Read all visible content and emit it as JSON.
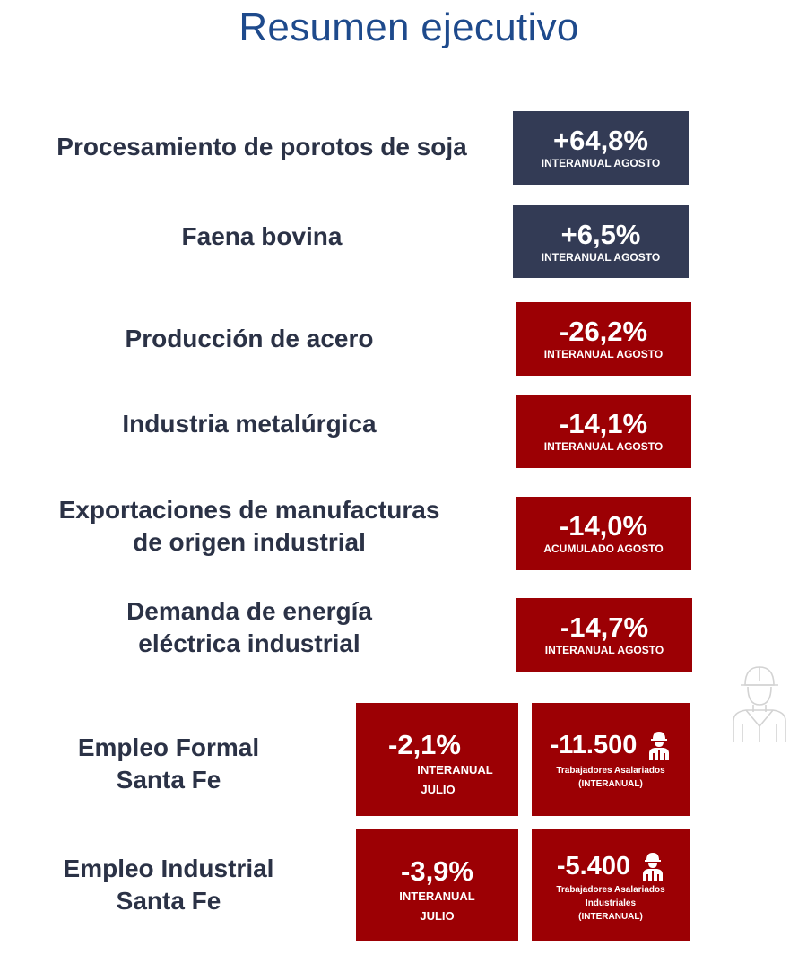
{
  "title": "Resumen ejecutivo",
  "rows": [
    {
      "label": "Procesamiento de porotos de soja",
      "value": "+64,8%",
      "sub": "INTERANUAL AGOSTO",
      "color": "#333b55"
    },
    {
      "label": "Faena bovina",
      "value": "+6,5%",
      "sub": "INTERANUAL AGOSTO",
      "color": "#333b55"
    },
    {
      "label": "Producción de acero",
      "value": "-26,2%",
      "sub": "INTERANUAL AGOSTO",
      "color": "#9c0004"
    },
    {
      "label": "Industria metalúrgica",
      "value": "-14,1%",
      "sub": "INTERANUAL AGOSTO",
      "color": "#9c0004"
    },
    {
      "label_line1": "Exportaciones de manufacturas",
      "label_line2": "de origen industrial",
      "value": "-14,0%",
      "sub": "ACUMULADO AGOSTO",
      "color": "#9c0004"
    },
    {
      "label_line1": "Demanda de energía",
      "label_line2": "eléctrica industrial",
      "value": "-14,7%",
      "sub": "INTERANUAL AGOSTO",
      "color": "#9c0004"
    }
  ],
  "employment": [
    {
      "label_line1": "Empleo Formal",
      "label_line2": "Santa Fe",
      "pct_value": "-2,1%",
      "pct_sub_line1": "INTERANUAL",
      "pct_sub_line2": "JULIO",
      "count_value": "-11.500",
      "count_sub_line1": "Trabajadores Asalariados",
      "count_sub_line2": "(INTERANUAL)"
    },
    {
      "label_line1": "Empleo Industrial",
      "label_line2": "Santa Fe",
      "pct_value": "-3,9%",
      "pct_sub_line1": "INTERANUAL",
      "pct_sub_line2": "JULIO",
      "count_value": "-5.400",
      "count_sub_line1": "Trabajadores Asalariados",
      "count_sub_line2": "Industriales",
      "count_sub_line3": "(INTERANUAL)"
    }
  ],
  "icons": {
    "worker": "construction-worker-icon"
  },
  "colors": {
    "positive": "#333b55",
    "negative": "#9c0004",
    "title": "#1e4a8c",
    "label": "#2b3246"
  }
}
